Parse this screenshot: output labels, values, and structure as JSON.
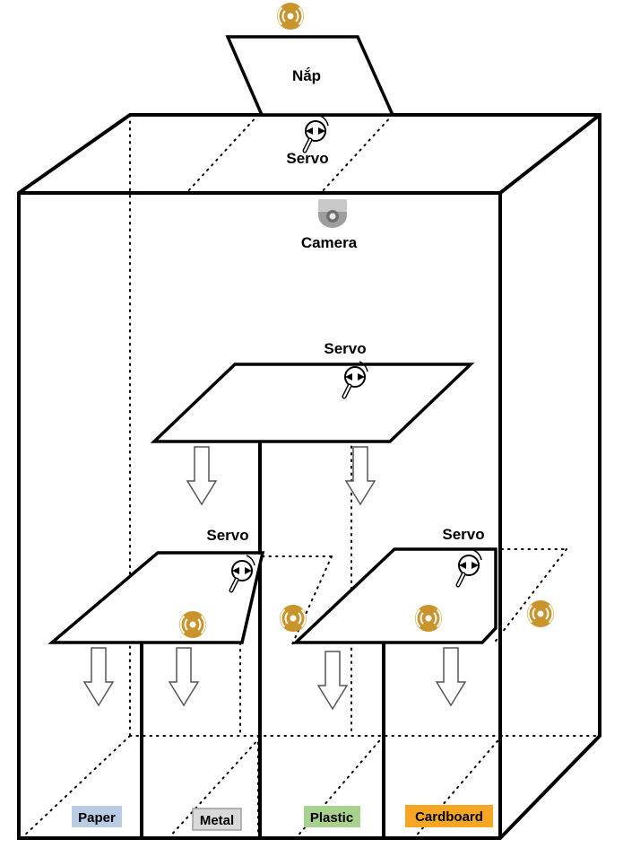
{
  "labels": {
    "lid": "Nắp",
    "servo_top": "Servo",
    "camera": "Camera",
    "servo_mid": "Servo",
    "servo_left": "Servo",
    "servo_right": "Servo"
  },
  "bins": {
    "paper": "Paper",
    "metal": "Metal",
    "plastic": "Plastic",
    "cardboard": "Cardboard"
  },
  "colors": {
    "sensor": "#C9942B",
    "paper_bg": "#B8CCE4",
    "metal_bg": "#D9D9D9",
    "plastic_bg": "#A9D18E",
    "cardboard_bg": "#F5A623",
    "camera": "#9E9E9E"
  },
  "icons": {
    "sensor": "proximity-sensor-icon",
    "servo": "servo-icon",
    "camera": "camera-icon",
    "arrow": "down-arrow-icon"
  }
}
